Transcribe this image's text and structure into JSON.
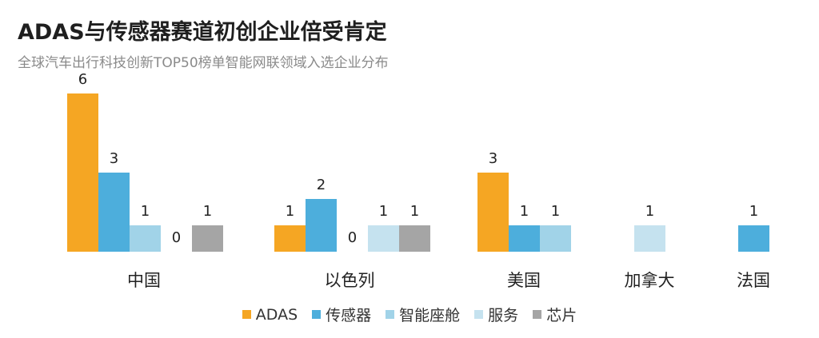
{
  "header": {
    "title": "ADAS与传感器赛道初创企业倍受肯定",
    "subtitle": "全球汽车出行科技创新TOP50榜单智能网联领域入选企业分布"
  },
  "chart_data": {
    "type": "bar",
    "title": "ADAS与传感器赛道初创企业倍受肯定",
    "subtitle": "全球汽车出行科技创新TOP50榜单智能网联领域入选企业分布",
    "legend_position": "bottom",
    "grid": false,
    "ylim": [
      0,
      6
    ],
    "categories": [
      "中国",
      "以色列",
      "美国",
      "加拿大",
      "法国"
    ],
    "series": [
      {
        "name": "ADAS",
        "color": "#F5A623",
        "values": [
          6,
          1,
          3,
          null,
          null
        ]
      },
      {
        "name": "传感器",
        "color": "#4DAEDC",
        "values": [
          3,
          2,
          1,
          null,
          1
        ]
      },
      {
        "name": "智能座舱",
        "color": "#A1D3E8",
        "values": [
          1,
          0,
          1,
          null,
          null
        ]
      },
      {
        "name": "服务",
        "color": "#C5E2EF",
        "values": [
          0,
          1,
          null,
          1,
          null
        ]
      },
      {
        "name": "芯片",
        "color": "#A5A5A5",
        "values": [
          1,
          1,
          null,
          null,
          null
        ]
      }
    ]
  }
}
